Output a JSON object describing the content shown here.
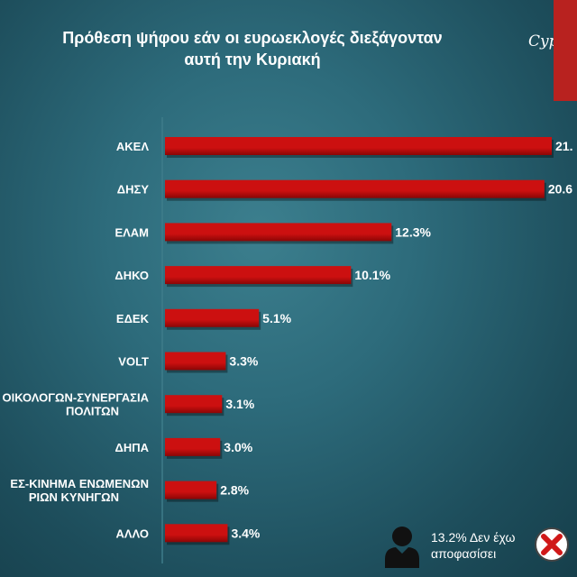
{
  "chart_data": {
    "type": "bar",
    "orientation": "horizontal",
    "title_lines": [
      "Πρόθεση ψήφου εάν οι ευρωεκλογές διεξάγονταν",
      "αυτή την Κυριακή"
    ],
    "categories": [
      [
        "ΑΚΕΛ"
      ],
      [
        "ΔΗΣΥ"
      ],
      [
        "ΕΛΑΜ"
      ],
      [
        "ΔΗΚΟ"
      ],
      [
        "ΕΔΕΚ"
      ],
      [
        "VOLT"
      ],
      [
        "ΟΙΚΟΛΟΓΩΝ-ΣΥΝΕΡΓΑΣΙΑ",
        "ΠΟΛΙΤΩΝ"
      ],
      [
        "ΔΗΠΑ"
      ],
      [
        "ΕΣ-ΚΙΝΗΜΑ ΕΝΩΜΕΝΩΝ",
        "ΡΙΩΝ ΚΥΝΗΓΩΝ"
      ],
      [
        "ΑΛΛΟ"
      ]
    ],
    "values": [
      21.0,
      20.6,
      12.3,
      10.1,
      5.1,
      3.3,
      3.1,
      3.0,
      2.8,
      3.4
    ],
    "value_labels": [
      "21.",
      "20.6",
      "12.3%",
      "10.1%",
      "5.1%",
      "3.3%",
      "3.1%",
      "3.0%",
      "2.8%",
      "3.4%"
    ],
    "xlim": [
      0,
      22
    ],
    "grid": false,
    "colors": {
      "bar": "#cc1010",
      "bar_dark": "#8a0606",
      "text": "#ffffff",
      "axis": "#3e7c8a"
    }
  },
  "logo": {
    "text": "Cypru",
    "color": "#b8221f"
  },
  "note": {
    "lines": [
      "13.2% Δεν έχω",
      "αποφασίσει"
    ]
  },
  "icons": {
    "person": "person-silhouette-icon",
    "close": "x-circle-icon"
  }
}
